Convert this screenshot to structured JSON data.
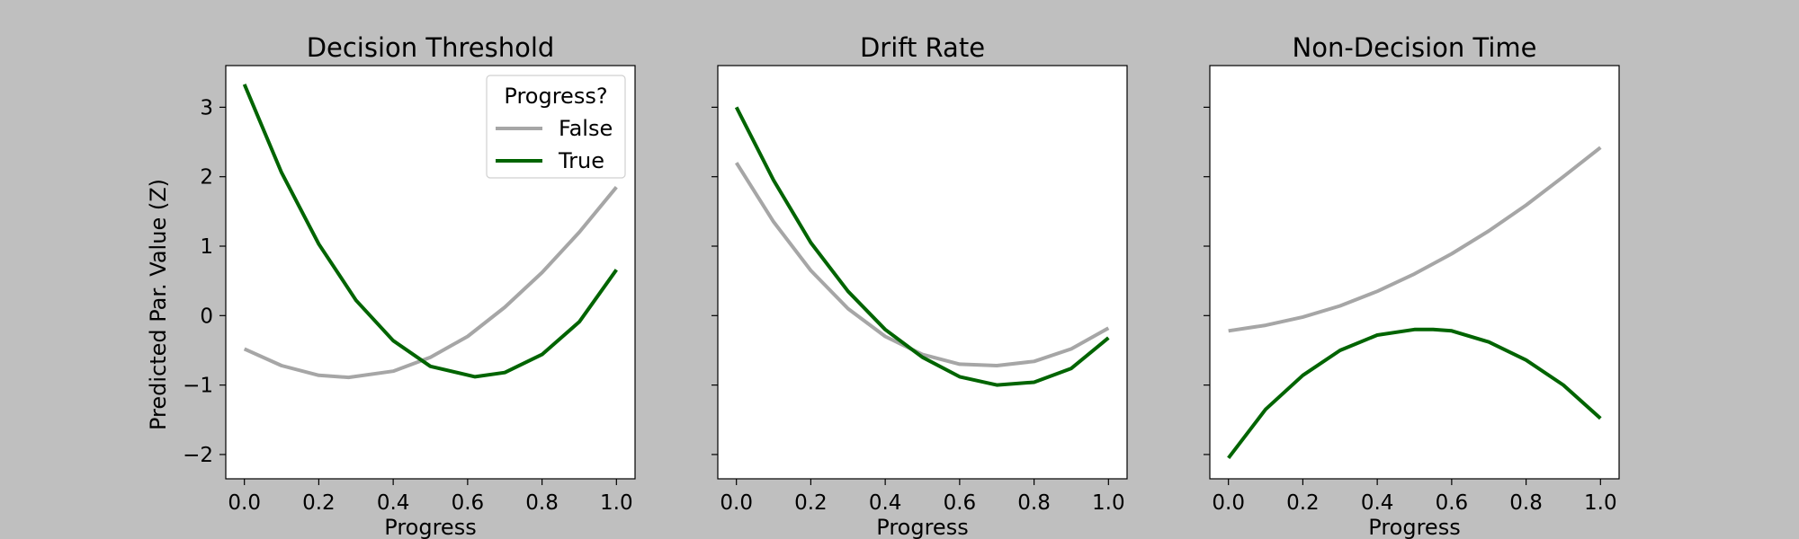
{
  "figure": {
    "background": "#bfbfbf",
    "ylabel": "Predicted Par. Value (Z)",
    "sharey": true
  },
  "legend": {
    "title": "Progress?",
    "entries": [
      {
        "label": "False",
        "color": "#a6a6a6"
      },
      {
        "label": "True",
        "color": "#006400"
      }
    ],
    "placement": "upper right of first panel"
  },
  "chart_data": [
    {
      "type": "line",
      "title": "Decision Threshold",
      "xlabel": "Progress",
      "ylabel": "Predicted Par. Value (Z)",
      "xlim": [
        -0.05,
        1.05
      ],
      "ylim": [
        -2.35,
        3.6
      ],
      "xticks": [
        "0.0",
        "0.2",
        "0.4",
        "0.6",
        "0.8",
        "1.0"
      ],
      "yticks": [
        "−2",
        "−1",
        "0",
        "1",
        "2",
        "3"
      ],
      "grid": false,
      "series": [
        {
          "name": "False",
          "color": "#a6a6a6",
          "x": [
            0.0,
            0.1,
            0.2,
            0.28,
            0.4,
            0.5,
            0.6,
            0.7,
            0.8,
            0.9,
            1.0
          ],
          "y": [
            -0.48,
            -0.72,
            -0.86,
            -0.89,
            -0.8,
            -0.6,
            -0.3,
            0.12,
            0.62,
            1.2,
            1.85
          ]
        },
        {
          "name": "True",
          "color": "#006400",
          "x": [
            0.0,
            0.1,
            0.2,
            0.3,
            0.4,
            0.5,
            0.62,
            0.7,
            0.8,
            0.9,
            1.0
          ],
          "y": [
            3.33,
            2.06,
            1.03,
            0.22,
            -0.36,
            -0.73,
            -0.88,
            -0.82,
            -0.56,
            -0.09,
            0.66
          ]
        }
      ]
    },
    {
      "type": "line",
      "title": "Drift Rate",
      "xlabel": "Progress",
      "xlim": [
        -0.05,
        1.05
      ],
      "ylim": [
        -2.35,
        3.6
      ],
      "xticks": [
        "0.0",
        "0.2",
        "0.4",
        "0.6",
        "0.8",
        "1.0"
      ],
      "grid": false,
      "series": [
        {
          "name": "False",
          "color": "#a6a6a6",
          "x": [
            0.0,
            0.1,
            0.2,
            0.3,
            0.4,
            0.5,
            0.6,
            0.7,
            0.8,
            0.9,
            1.0
          ],
          "y": [
            2.2,
            1.35,
            0.65,
            0.1,
            -0.3,
            -0.56,
            -0.7,
            -0.72,
            -0.66,
            -0.48,
            -0.18
          ]
        },
        {
          "name": "True",
          "color": "#006400",
          "x": [
            0.0,
            0.1,
            0.2,
            0.3,
            0.4,
            0.5,
            0.6,
            0.7,
            0.8,
            0.9,
            1.0
          ],
          "y": [
            3.0,
            1.95,
            1.05,
            0.35,
            -0.2,
            -0.6,
            -0.88,
            -1.0,
            -0.96,
            -0.76,
            -0.32
          ]
        }
      ]
    },
    {
      "type": "line",
      "title": "Non-Decision Time",
      "xlabel": "Progress",
      "xlim": [
        -0.05,
        1.05
      ],
      "ylim": [
        -2.35,
        3.6
      ],
      "xticks": [
        "0.0",
        "0.2",
        "0.4",
        "0.6",
        "0.8",
        "1.0"
      ],
      "grid": false,
      "series": [
        {
          "name": "False",
          "color": "#a6a6a6",
          "x": [
            0.0,
            0.1,
            0.2,
            0.3,
            0.4,
            0.5,
            0.6,
            0.7,
            0.8,
            0.9,
            1.0
          ],
          "y": [
            -0.22,
            -0.14,
            -0.02,
            0.14,
            0.35,
            0.6,
            0.89,
            1.22,
            1.59,
            2.0,
            2.42
          ]
        },
        {
          "name": "True",
          "color": "#006400",
          "x": [
            0.0,
            0.1,
            0.2,
            0.3,
            0.4,
            0.5,
            0.55,
            0.6,
            0.7,
            0.8,
            0.9,
            1.0
          ],
          "y": [
            -2.05,
            -1.35,
            -0.86,
            -0.5,
            -0.28,
            -0.2,
            -0.2,
            -0.22,
            -0.38,
            -0.64,
            -1.0,
            -1.48
          ]
        }
      ]
    }
  ]
}
